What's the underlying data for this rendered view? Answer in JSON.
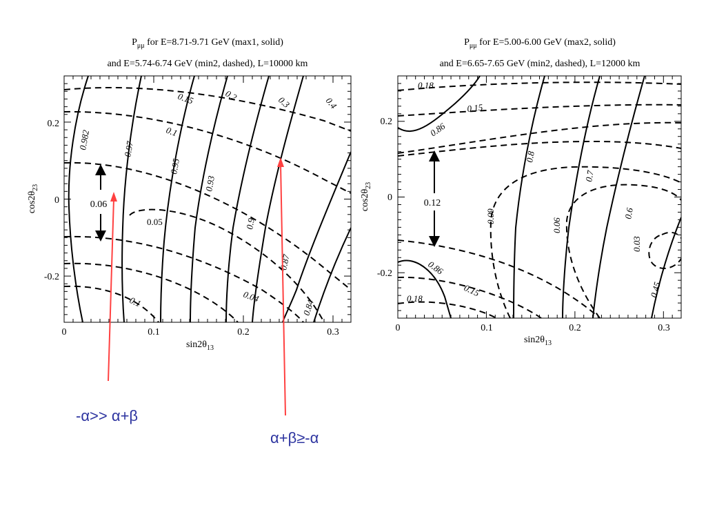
{
  "chart_data": [
    {
      "type": "contour",
      "title_line1": "P",
      "title_sub": "μμ",
      "title_line1_rest": " for E=8.71-9.71 GeV (max1, solid)",
      "title_line2": "and E=5.74-6.74 GeV (min2, dashed), L=10000 km",
      "xlabel": "sin2θ",
      "xlabel_sub": "13",
      "ylabel": "cos2θ",
      "ylabel_sub": "23",
      "xlim": [
        0,
        0.32
      ],
      "ylim": [
        -0.32,
        0.32
      ],
      "xticks": [
        "0",
        "0.1",
        "0.2",
        "0.3"
      ],
      "yticks": [
        "0.2",
        "0",
        "-0.2"
      ],
      "solid_contours": [
        "0.982",
        "0.97",
        "0.95",
        "0.93",
        "0.9",
        "0.87",
        "0.84"
      ],
      "dashed_contours": [
        "0.15",
        "0.2",
        "0.3",
        "0.4",
        "0.1",
        "0.05",
        "0.04",
        "0.1"
      ],
      "bracket_label": "0.06"
    },
    {
      "type": "contour",
      "title_line1": "P",
      "title_sub": "μμ",
      "title_line1_rest": " for E=5.00-6.00 GeV (max2, solid)",
      "title_line2": "and E=6.65-7.65 GeV (min2, dashed), L=12000 km",
      "xlabel": "sin2θ",
      "xlabel_sub": "13",
      "ylabel": "cos2θ",
      "ylabel_sub": "23",
      "xlim": [
        0,
        0.32
      ],
      "ylim": [
        -0.32,
        0.32
      ],
      "xticks": [
        "0",
        "0.1",
        "0.2",
        "0.3"
      ],
      "yticks": [
        "0.2",
        "0",
        "-0.2"
      ],
      "solid_contours": [
        "0.86",
        "0.8",
        "0.7",
        "0.6",
        "0.86",
        "0.45"
      ],
      "dashed_contours": [
        "0.18",
        "0.15",
        "0.09",
        "0.06",
        "0.03",
        "0.15",
        "0.18"
      ],
      "bracket_label": "0.12"
    }
  ],
  "annotations": {
    "left": "-α>> α+β",
    "right": "α+β≥-α"
  },
  "colors": {
    "arrow": "#ff4040",
    "annotation_text": "#2e35a0",
    "ink": "#000000"
  }
}
